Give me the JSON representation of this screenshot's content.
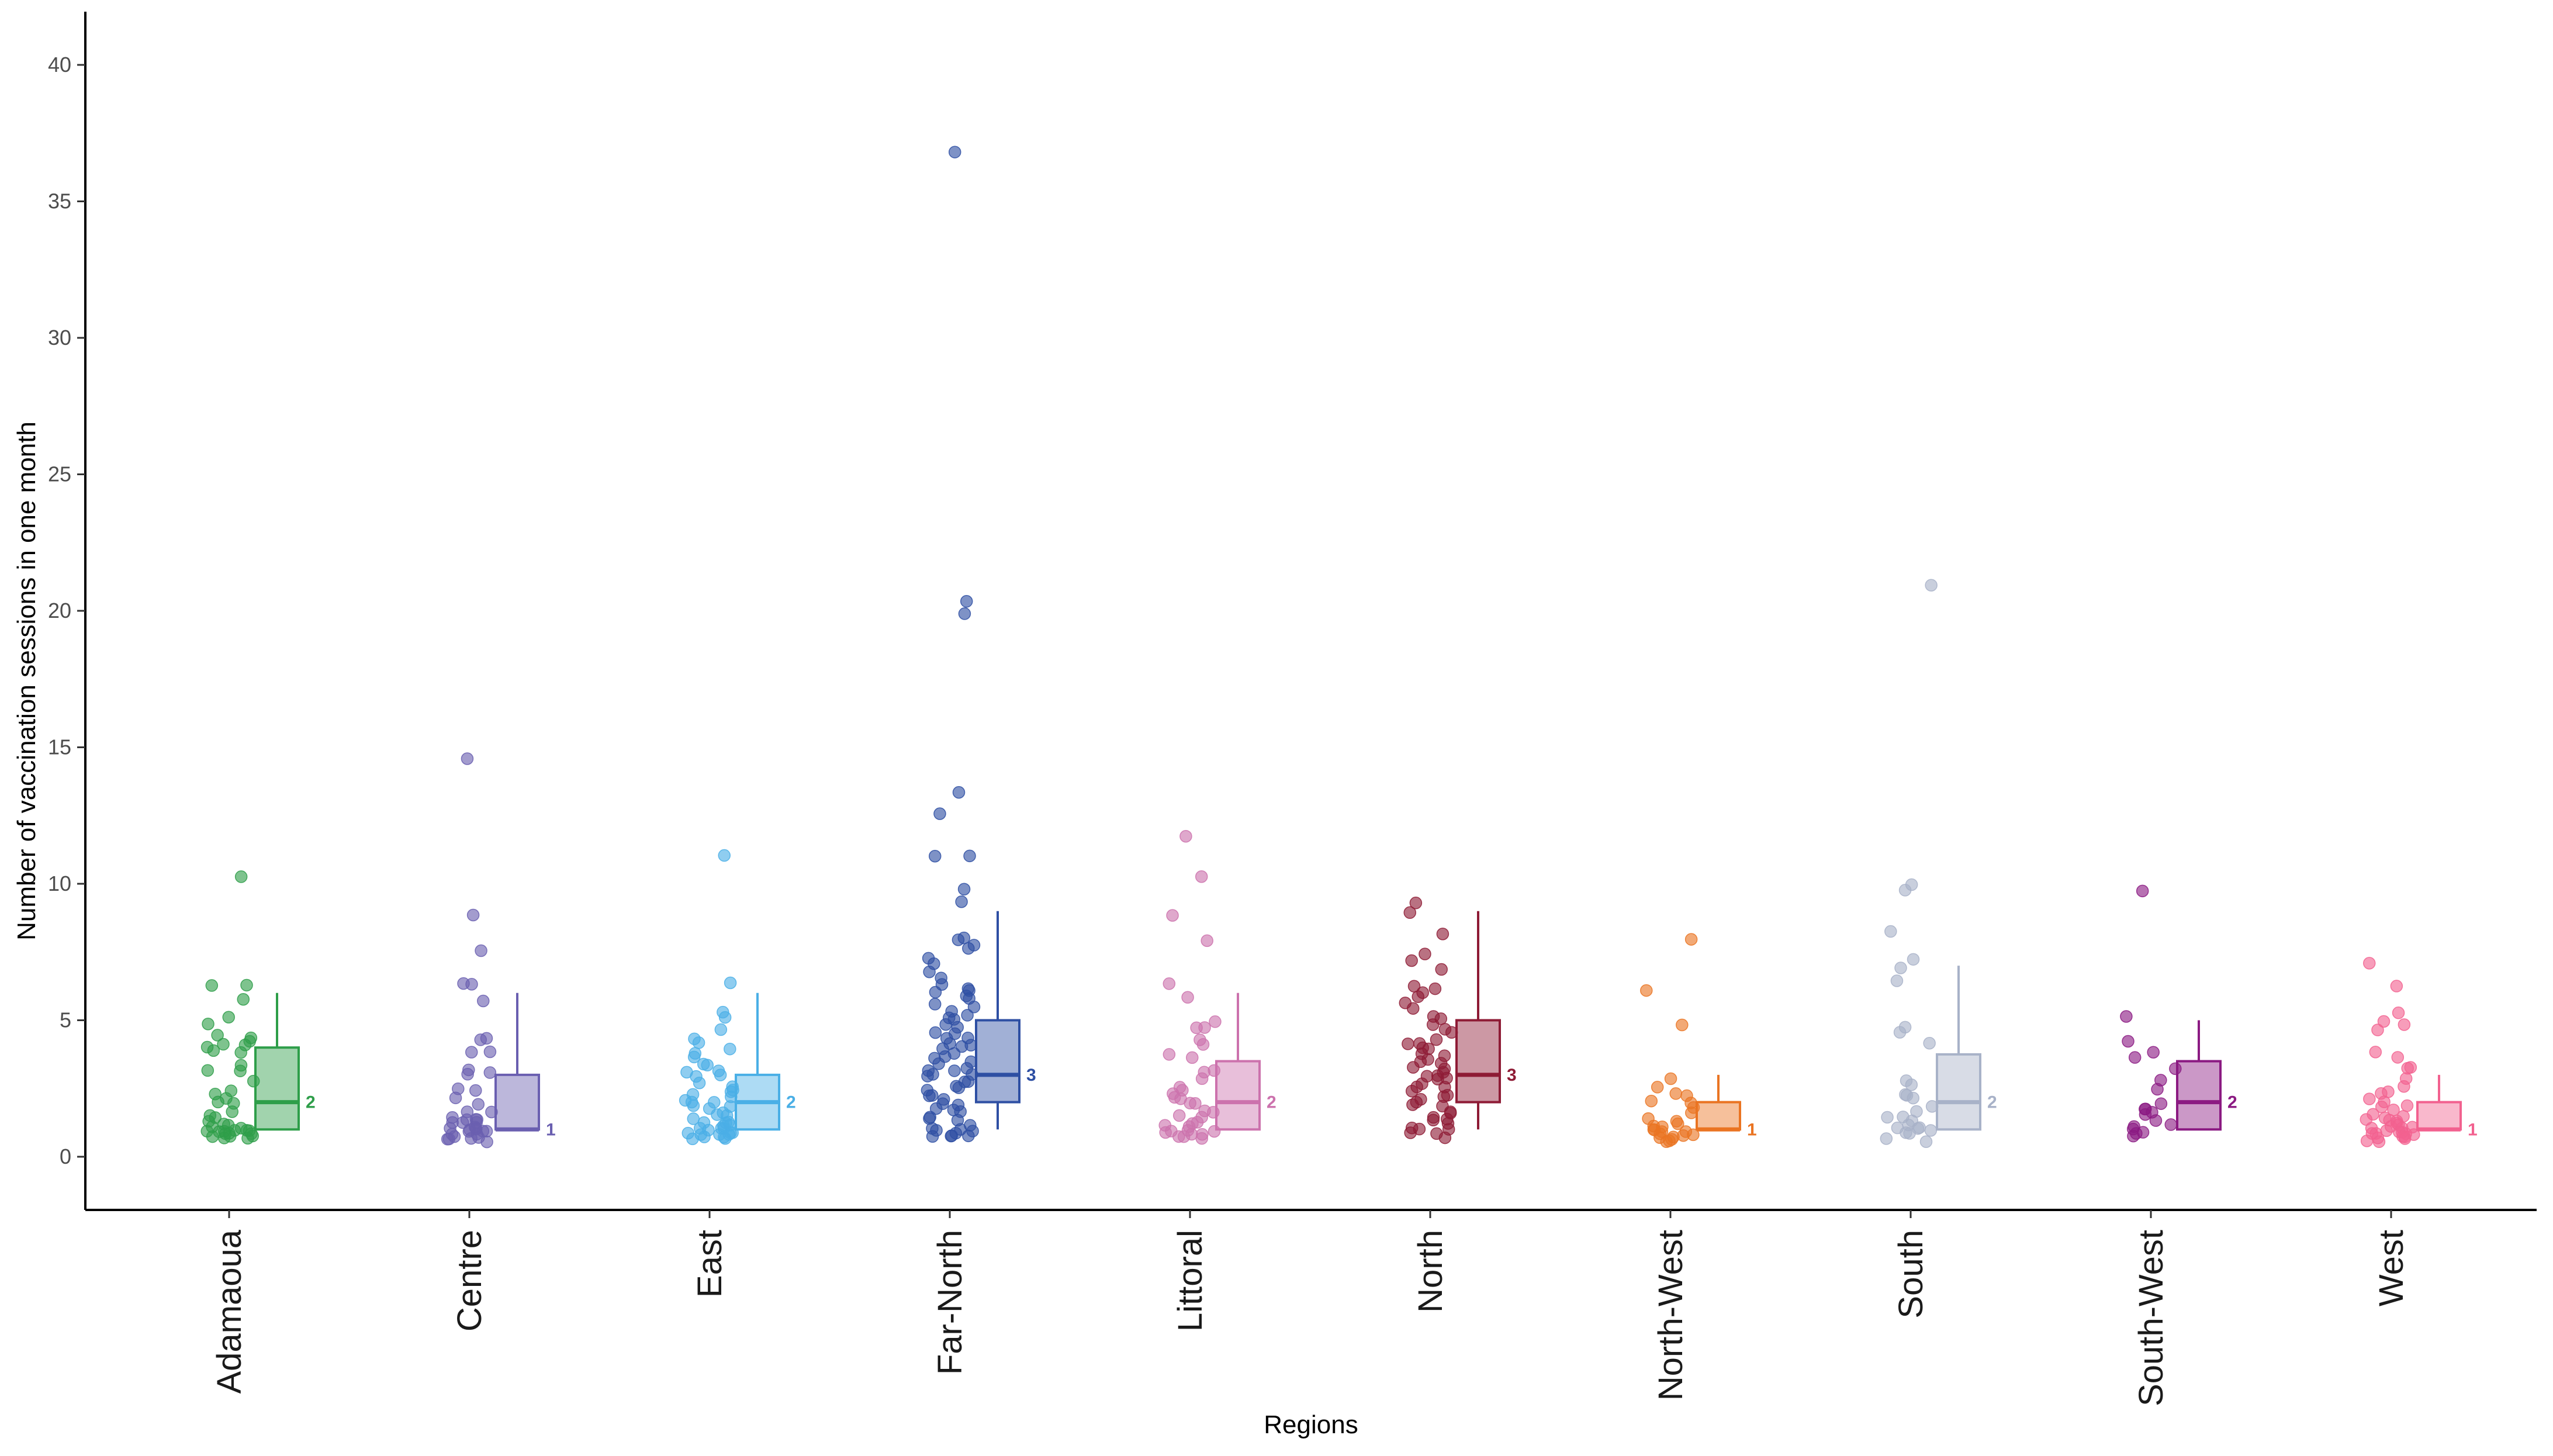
{
  "chart_data": {
    "type": "box-with-jitter",
    "title": "",
    "xlabel": "Regions",
    "ylabel": "Number of vaccination sessions in one month",
    "ylim": [
      -2,
      42
    ],
    "yticks": [
      0,
      5,
      10,
      15,
      20,
      25,
      30,
      35,
      40
    ],
    "grid": false,
    "categories": [
      "Adamaoua",
      "Centre",
      "East",
      "Far-North",
      "Littoral",
      "North",
      "North-West",
      "South",
      "South-West",
      "West"
    ],
    "colors": {
      "Adamaoua": "#2e9e49",
      "Centre": "#6a5fb0",
      "East": "#4aafe6",
      "Far-North": "#2e4fa3",
      "Littoral": "#cc72ad",
      "North": "#8e1b35",
      "North-West": "#ea7422",
      "South": "#a8b2c8",
      "South-West": "#8b1a82",
      "West": "#f2618f"
    },
    "boxes": [
      {
        "region": "Adamaoua",
        "whisker_low": 1,
        "q1": 1,
        "median": 2,
        "q3": 4,
        "whisker_high": 6,
        "median_label": "2"
      },
      {
        "region": "Centre",
        "whisker_low": 1,
        "q1": 1,
        "median": 1,
        "q3": 3,
        "whisker_high": 6,
        "median_label": "1"
      },
      {
        "region": "East",
        "whisker_low": 1,
        "q1": 1,
        "median": 2,
        "q3": 3,
        "whisker_high": 6,
        "median_label": "2"
      },
      {
        "region": "Far-North",
        "whisker_low": 1,
        "q1": 2,
        "median": 3,
        "q3": 5,
        "whisker_high": 9,
        "median_label": "3"
      },
      {
        "region": "Littoral",
        "whisker_low": 1,
        "q1": 1,
        "median": 2,
        "q3": 3.5,
        "whisker_high": 6,
        "median_label": "2"
      },
      {
        "region": "North",
        "whisker_low": 1,
        "q1": 2,
        "median": 3,
        "q3": 5,
        "whisker_high": 9,
        "median_label": "3"
      },
      {
        "region": "North-West",
        "whisker_low": 1,
        "q1": 1,
        "median": 1,
        "q3": 2,
        "whisker_high": 3,
        "median_label": "1"
      },
      {
        "region": "South",
        "whisker_low": 1,
        "q1": 1,
        "median": 2,
        "q3": 3.75,
        "whisker_high": 7,
        "median_label": "2"
      },
      {
        "region": "South-West",
        "whisker_low": 1,
        "q1": 1,
        "median": 2,
        "q3": 3.5,
        "whisker_high": 5,
        "median_label": "2"
      },
      {
        "region": "West",
        "whisker_low": 1,
        "q1": 1,
        "median": 1,
        "q3": 2,
        "whisker_high": 3,
        "median_label": "1"
      }
    ],
    "points": [
      {
        "region": "Adamaoua",
        "values": [
          10.3,
          6.3,
          6.3,
          5.8,
          5.1,
          4.9,
          4.4,
          4.3,
          4.2,
          4.1,
          4.1,
          4.0,
          3.9,
          3.8,
          3.4,
          3.2,
          3.1,
          2.8,
          2.4,
          2.3,
          2.1,
          2.0,
          1.9,
          1.7,
          1.5,
          1.4,
          1.3,
          1.2,
          1.2,
          1.1,
          1.1,
          1.0,
          1.0,
          1.0,
          0.9,
          0.9,
          0.9,
          0.8,
          0.8,
          0.8,
          0.8,
          0.7,
          0.7,
          0.7,
          0.7
        ]
      },
      {
        "region": "Centre",
        "values": [
          14.6,
          8.8,
          7.6,
          6.3,
          6.3,
          5.7,
          4.4,
          4.3,
          3.9,
          3.8,
          3.2,
          3.1,
          3.0,
          2.5,
          2.4,
          2.1,
          1.9,
          1.7,
          1.6,
          1.5,
          1.4,
          1.4,
          1.3,
          1.3,
          1.2,
          1.2,
          1.1,
          1.1,
          1.0,
          1.0,
          1.0,
          0.9,
          0.9,
          0.9,
          0.8,
          0.8,
          0.8,
          0.7,
          0.7,
          0.7,
          0.6,
          0.6
        ]
      },
      {
        "region": "East",
        "values": [
          11.1,
          6.4,
          5.3,
          5.1,
          4.7,
          4.3,
          4.2,
          4.0,
          3.8,
          3.6,
          3.4,
          3.3,
          3.2,
          3.1,
          3.0,
          2.9,
          2.7,
          2.6,
          2.5,
          2.4,
          2.3,
          2.2,
          2.1,
          2.0,
          2.0,
          1.9,
          1.8,
          1.7,
          1.6,
          1.5,
          1.5,
          1.4,
          1.3,
          1.3,
          1.2,
          1.2,
          1.1,
          1.1,
          1.0,
          1.0,
          1.0,
          0.9,
          0.9,
          0.9,
          0.8,
          0.8,
          0.8,
          0.7,
          0.7,
          0.7,
          0.7
        ]
      },
      {
        "region": "Far-North",
        "values": [
          36.8,
          20.4,
          19.9,
          13.4,
          12.6,
          11.0,
          11.0,
          9.8,
          9.3,
          8.0,
          7.9,
          7.7,
          7.6,
          7.3,
          7.1,
          6.8,
          6.5,
          6.3,
          6.2,
          6.1,
          6.0,
          5.9,
          5.8,
          5.6,
          5.5,
          5.3,
          5.2,
          5.1,
          5.0,
          4.9,
          4.8,
          4.6,
          4.5,
          4.4,
          4.3,
          4.2,
          4.1,
          4.0,
          3.9,
          3.8,
          3.7,
          3.6,
          3.5,
          3.4,
          3.3,
          3.2,
          3.1,
          3.0,
          3.0,
          2.9,
          2.8,
          2.7,
          2.6,
          2.5,
          2.4,
          2.3,
          2.2,
          2.1,
          2.0,
          1.9,
          1.8,
          1.7,
          1.6,
          1.5,
          1.4,
          1.3,
          1.2,
          1.1,
          1.0,
          1.0,
          0.9,
          0.9,
          0.8,
          0.8,
          0.7,
          0.7
        ]
      },
      {
        "region": "Littoral",
        "values": [
          11.7,
          10.2,
          8.9,
          7.9,
          6.3,
          5.8,
          4.9,
          4.7,
          4.7,
          4.3,
          4.1,
          3.8,
          3.6,
          3.2,
          3.1,
          2.9,
          2.6,
          2.4,
          2.3,
          2.2,
          2.1,
          2.0,
          1.9,
          1.7,
          1.6,
          1.5,
          1.4,
          1.3,
          1.2,
          1.1,
          1.1,
          1.0,
          1.0,
          0.9,
          0.9,
          0.8,
          0.8,
          0.8,
          0.7,
          0.7
        ]
      },
      {
        "region": "North",
        "values": [
          9.3,
          9.0,
          8.2,
          7.4,
          7.2,
          6.9,
          6.3,
          6.1,
          6.0,
          5.9,
          5.6,
          5.4,
          5.2,
          5.0,
          4.9,
          4.7,
          4.5,
          4.3,
          4.2,
          4.1,
          4.0,
          3.9,
          3.8,
          3.7,
          3.6,
          3.5,
          3.4,
          3.3,
          3.2,
          3.1,
          3.0,
          3.0,
          2.9,
          2.8,
          2.7,
          2.6,
          2.5,
          2.4,
          2.3,
          2.2,
          2.1,
          2.0,
          1.9,
          1.8,
          1.7,
          1.6,
          1.5,
          1.4,
          1.3,
          1.2,
          1.1,
          1.0,
          1.0,
          0.9,
          0.8,
          0.7
        ]
      },
      {
        "region": "North-West",
        "values": [
          8.0,
          6.1,
          4.8,
          2.8,
          2.5,
          2.3,
          2.2,
          2.1,
          2.0,
          1.8,
          1.6,
          1.4,
          1.3,
          1.2,
          1.1,
          1.1,
          1.0,
          1.0,
          0.9,
          0.9,
          0.8,
          0.8,
          0.8,
          0.7,
          0.7,
          0.7,
          0.6,
          0.6
        ]
      },
      {
        "region": "South",
        "values": [
          21.0,
          10.0,
          9.8,
          8.2,
          7.2,
          6.9,
          6.4,
          4.7,
          4.5,
          4.2,
          2.8,
          2.6,
          2.3,
          2.2,
          2.1,
          1.9,
          1.7,
          1.5,
          1.4,
          1.3,
          1.2,
          1.1,
          1.1,
          1.0,
          1.0,
          0.9,
          0.8,
          0.7,
          0.6
        ]
      },
      {
        "region": "South-West",
        "values": [
          9.7,
          5.1,
          4.2,
          3.8,
          3.7,
          3.2,
          2.8,
          2.5,
          2.0,
          1.8,
          1.7,
          1.6,
          1.5,
          1.3,
          1.2,
          1.1,
          1.0,
          0.9,
          0.8,
          0.8
        ]
      },
      {
        "region": "West",
        "values": [
          7.1,
          6.3,
          5.3,
          5.0,
          4.8,
          4.7,
          3.8,
          3.6,
          3.3,
          3.2,
          2.9,
          2.6,
          2.4,
          2.3,
          2.1,
          2.0,
          1.9,
          1.8,
          1.7,
          1.6,
          1.5,
          1.4,
          1.4,
          1.3,
          1.3,
          1.2,
          1.2,
          1.1,
          1.1,
          1.0,
          1.0,
          1.0,
          0.9,
          0.9,
          0.9,
          0.8,
          0.8,
          0.8,
          0.7,
          0.7,
          0.7,
          0.7,
          0.6,
          0.6
        ]
      }
    ]
  }
}
